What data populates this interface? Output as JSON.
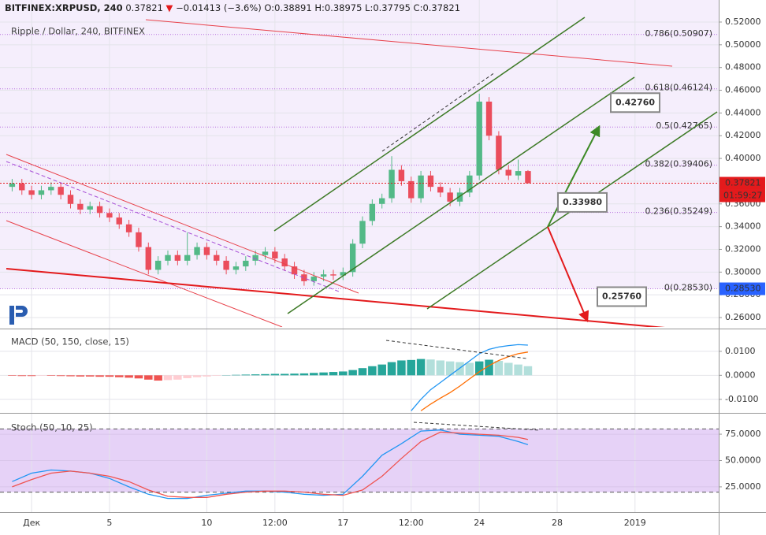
{
  "chart_data": [
    {
      "type": "candlestick",
      "symbol": "BITFINEX:XRPUSD, 240",
      "last": 0.37821,
      "change_arrow": "▼",
      "change": "−0.01413 (−3.6%)",
      "ohlc": "O:0.38891 H:0.38975 L:0.37795 C:0.37821",
      "subtitle": "Ripple / Dollar, 240, BITFINEX",
      "timer": "01:59:27",
      "up_color": "#53b987",
      "down_color": "#eb4d5c",
      "background": "#f5eefc",
      "xlim": [
        -0.3,
        36.3
      ],
      "xticks": [
        {
          "value": 1,
          "label": "Дек"
        },
        5,
        10,
        {
          "value": 13.5,
          "label": "12:00"
        },
        17,
        {
          "value": 20.5,
          "label": "12:00"
        },
        24,
        28,
        {
          "value": 32,
          "label": "2019"
        }
      ],
      "ylim": [
        0.2517,
        0.5394
      ],
      "yticks": [
        {
          "value": 0.26,
          "label": "0.26000"
        },
        {
          "value": 0.28,
          "label": "0.28000"
        },
        {
          "value": 0.3,
          "label": "0.30000"
        },
        {
          "value": 0.32,
          "label": "0.32000"
        },
        {
          "value": 0.34,
          "label": "0.34000"
        },
        {
          "value": 0.36,
          "label": "0.36000"
        },
        {
          "value": 0.38,
          "label": "0.38000"
        },
        {
          "value": 0.4,
          "label": "0.40000"
        },
        {
          "value": 0.42,
          "label": "0.42000"
        },
        {
          "value": 0.44,
          "label": "0.44000"
        },
        {
          "value": 0.46,
          "label": "0.46000"
        },
        {
          "value": 0.48,
          "label": "0.48000"
        },
        {
          "value": 0.5,
          "label": "0.50000"
        },
        {
          "value": 0.52,
          "label": "0.52000"
        }
      ],
      "x": [
        0,
        0.5,
        1,
        1.5,
        2,
        2.5,
        3,
        3.5,
        4,
        4.5,
        5,
        5.5,
        6,
        6.5,
        7,
        7.5,
        8,
        8.5,
        9,
        9.5,
        10,
        10.5,
        11,
        11.5,
        12,
        12.5,
        13,
        13.5,
        14,
        14.5,
        15,
        15.5,
        16,
        16.5,
        17,
        17.5,
        18,
        18.5,
        19,
        19.5,
        20,
        20.5,
        21,
        21.5,
        22,
        22.5,
        23,
        23.5,
        24,
        24.5,
        25,
        25.5,
        26,
        26.5
      ],
      "open": [
        0.375,
        0.378,
        0.372,
        0.368,
        0.372,
        0.375,
        0.368,
        0.36,
        0.355,
        0.358,
        0.352,
        0.348,
        0.342,
        0.335,
        0.322,
        0.302,
        0.31,
        0.315,
        0.31,
        0.315,
        0.322,
        0.315,
        0.31,
        0.302,
        0.305,
        0.31,
        0.315,
        0.318,
        0.312,
        0.305,
        0.298,
        0.292,
        0.296,
        0.298,
        0.297,
        0.3,
        0.325,
        0.345,
        0.36,
        0.365,
        0.39,
        0.38,
        0.365,
        0.385,
        0.375,
        0.37,
        0.362,
        0.37,
        0.385,
        0.45,
        0.42,
        0.39,
        0.385,
        0.38891
      ],
      "high": [
        0.382,
        0.382,
        0.376,
        0.376,
        0.379,
        0.379,
        0.372,
        0.364,
        0.362,
        0.362,
        0.356,
        0.352,
        0.346,
        0.339,
        0.326,
        0.314,
        0.319,
        0.319,
        0.335,
        0.326,
        0.326,
        0.319,
        0.314,
        0.309,
        0.314,
        0.319,
        0.322,
        0.322,
        0.316,
        0.309,
        0.302,
        0.3,
        0.302,
        0.302,
        0.304,
        0.329,
        0.349,
        0.364,
        0.369,
        0.402,
        0.394,
        0.384,
        0.389,
        0.389,
        0.379,
        0.374,
        0.374,
        0.389,
        0.457,
        0.454,
        0.424,
        0.394,
        0.399,
        0.38975
      ],
      "low": [
        0.371,
        0.368,
        0.364,
        0.364,
        0.368,
        0.364,
        0.356,
        0.351,
        0.351,
        0.348,
        0.344,
        0.338,
        0.331,
        0.318,
        0.298,
        0.298,
        0.306,
        0.306,
        0.306,
        0.311,
        0.311,
        0.306,
        0.298,
        0.298,
        0.301,
        0.306,
        0.311,
        0.308,
        0.301,
        0.294,
        0.288,
        0.288,
        0.292,
        0.293,
        0.293,
        0.296,
        0.321,
        0.341,
        0.356,
        0.361,
        0.376,
        0.361,
        0.361,
        0.371,
        0.366,
        0.358,
        0.358,
        0.366,
        0.381,
        0.416,
        0.386,
        0.381,
        0.381,
        0.37795
      ],
      "close": [
        0.378,
        0.372,
        0.368,
        0.372,
        0.375,
        0.368,
        0.36,
        0.355,
        0.358,
        0.352,
        0.348,
        0.342,
        0.335,
        0.322,
        0.302,
        0.31,
        0.315,
        0.31,
        0.315,
        0.322,
        0.315,
        0.31,
        0.302,
        0.305,
        0.31,
        0.315,
        0.318,
        0.312,
        0.305,
        0.298,
        0.292,
        0.296,
        0.298,
        0.297,
        0.3,
        0.325,
        0.345,
        0.36,
        0.365,
        0.39,
        0.38,
        0.365,
        0.385,
        0.375,
        0.37,
        0.362,
        0.37,
        0.385,
        0.45,
        0.42,
        0.39,
        0.385,
        0.38891,
        0.37821
      ],
      "fib_color": "#a64dd6",
      "fib_levels": [
        {
          "value": 0.50907,
          "label": "0.786(0.50907)"
        },
        {
          "value": 0.46124,
          "label": "0.618(0.46124)"
        },
        {
          "value": 0.42765,
          "label": "0.5(0.42765)"
        },
        {
          "value": 0.39406,
          "label": "0.382(0.39406)"
        },
        {
          "value": 0.35249,
          "label": "0.236(0.35249)"
        },
        {
          "value": 0.2853,
          "label": "0(0.28530)"
        }
      ],
      "price_marker": {
        "value": 0.2853,
        "label": "0.28530"
      },
      "targets": [
        {
          "value": 0.4276,
          "label": "0.42760",
          "color": "#3d8a26"
        },
        {
          "value": 0.3398,
          "label": "0.33980",
          "color": "#e31a1c"
        },
        {
          "value": 0.2576,
          "label": "0.25760",
          "color": "#e31a1c"
        }
      ]
    },
    {
      "type": "macd",
      "title": "MACD (50, 150, close, 15)",
      "ylim": [
        -0.015,
        0.0185
      ],
      "yticks": [
        {
          "value": 0.01,
          "label": "0.0100"
        },
        {
          "value": 0,
          "label": "0.0000"
        },
        {
          "value": -0.01,
          "label": "-0.0100"
        }
      ],
      "hist_colors": [
        "#26a69a",
        "#b2dfdb",
        "#ef5350",
        "#ffcdd2"
      ],
      "histogram": [
        -0.0002,
        -0.0003,
        -0.0003,
        -0.0002,
        -0.0002,
        -0.0003,
        -0.0004,
        -0.0005,
        -0.0005,
        -0.0006,
        -0.0006,
        -0.0008,
        -0.001,
        -0.0013,
        -0.0018,
        -0.0022,
        -0.002,
        -0.0018,
        -0.0012,
        -0.0008,
        -0.0005,
        -0.0002,
        0.0001,
        0.0002,
        0.0003,
        0.0004,
        0.0005,
        0.0006,
        0.0006,
        0.0007,
        0.0008,
        0.001,
        0.0012,
        0.0014,
        0.0016,
        0.0022,
        0.003,
        0.0038,
        0.0045,
        0.0055,
        0.0062,
        0.0064,
        0.0068,
        0.0066,
        0.0062,
        0.0058,
        0.0055,
        0.0052,
        0.0058,
        0.0065,
        0.006,
        0.0052,
        0.0045,
        0.0038
      ],
      "series": [
        {
          "color": "#2196f3",
          "values": [
            null,
            null,
            null,
            null,
            null,
            null,
            null,
            null,
            null,
            null,
            null,
            null,
            null,
            null,
            null,
            null,
            null,
            null,
            null,
            null,
            null,
            null,
            null,
            null,
            null,
            null,
            null,
            null,
            null,
            null,
            null,
            null,
            null,
            null,
            null,
            null,
            null,
            null,
            null,
            null,
            null,
            -0.0148,
            -0.01,
            -0.006,
            -0.003,
            0.0,
            0.003,
            0.006,
            0.009,
            0.0108,
            0.0118,
            0.0124,
            0.0128,
            0.0126
          ]
        },
        {
          "color": "#ff6d00",
          "values": [
            null,
            null,
            null,
            null,
            null,
            null,
            null,
            null,
            null,
            null,
            null,
            null,
            null,
            null,
            null,
            null,
            null,
            null,
            null,
            null,
            null,
            null,
            null,
            null,
            null,
            null,
            null,
            null,
            null,
            null,
            null,
            null,
            null,
            null,
            null,
            null,
            null,
            null,
            null,
            null,
            null,
            null,
            -0.0148,
            -0.012,
            -0.0095,
            -0.0072,
            -0.0045,
            -0.0015,
            0.0015,
            0.004,
            0.0062,
            0.0078,
            0.009,
            0.0097
          ]
        }
      ]
    },
    {
      "type": "stochastic",
      "title": "Stoch (50, 10, 25)",
      "ylim": [
        1,
        93
      ],
      "yticks": [
        {
          "value": 25,
          "label": "25.0000"
        },
        {
          "value": 50,
          "label": "50.0000"
        },
        {
          "value": 75,
          "label": "75.0000"
        }
      ],
      "bands": [
        20,
        80
      ],
      "band_color": "#e6d2f7",
      "x": [
        0,
        1,
        2,
        3,
        4,
        5,
        6,
        7,
        8,
        9,
        10,
        11,
        12,
        13,
        14,
        15,
        16,
        17,
        18,
        19,
        20,
        21,
        22,
        23,
        24,
        25,
        26,
        26.5
      ],
      "series": [
        {
          "color": "#2196f3",
          "values": [
            30,
            38,
            41,
            40,
            38,
            33,
            25,
            18,
            14,
            14,
            17,
            19,
            21,
            21,
            20,
            18,
            17,
            18,
            35,
            55,
            66,
            78,
            79,
            75,
            74,
            73,
            68,
            65
          ]
        },
        {
          "color": "#ef5350",
          "values": [
            25,
            32,
            38,
            40,
            38,
            35,
            30,
            22,
            16,
            15,
            15,
            18,
            20,
            21,
            21,
            20,
            18,
            17,
            22,
            35,
            52,
            68,
            77,
            76,
            75,
            74,
            72,
            70
          ]
        }
      ]
    }
  ]
}
